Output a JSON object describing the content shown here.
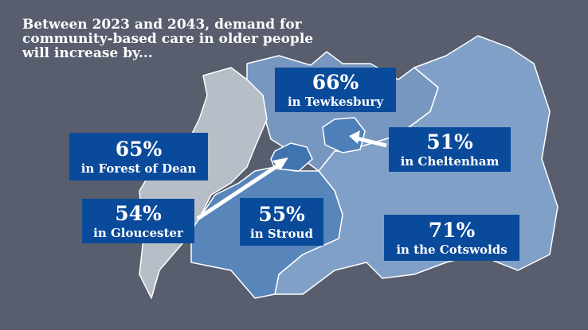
{
  "title": "Between 2023 and 2043, demand for community-based care in older people will increase by...",
  "colors": {
    "background": "#585e6e",
    "box": "#0a4a9a",
    "forest_of_dean": "#b6bec8",
    "tewkesbury": "#7797c0",
    "cheltenham": "#4d7fb8",
    "gloucester": "#3f74b0",
    "stroud": "#5886bb",
    "cotswolds": "#80a0c8"
  },
  "regions": [
    {
      "id": "tewkesbury",
      "pct": "66%",
      "label": "in Tewkesbury"
    },
    {
      "id": "forest",
      "pct": "65%",
      "label": "in Forest of Dean"
    },
    {
      "id": "cheltenham",
      "pct": "51%",
      "label": "in Cheltenham"
    },
    {
      "id": "gloucester",
      "pct": "54%",
      "label": "in Gloucester"
    },
    {
      "id": "stroud",
      "pct": "55%",
      "label": "in Stroud"
    },
    {
      "id": "cotswolds",
      "pct": "71%",
      "label": "in the Cotswolds"
    }
  ]
}
